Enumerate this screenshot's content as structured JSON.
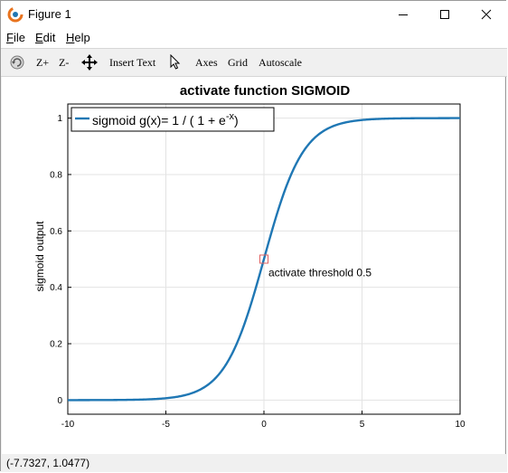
{
  "window": {
    "title": "Figure 1",
    "controls": [
      "minimize",
      "maximize",
      "close"
    ]
  },
  "menu": {
    "items": [
      {
        "label": "File",
        "mnemonic": "F"
      },
      {
        "label": "Edit",
        "mnemonic": "E"
      },
      {
        "label": "Help",
        "mnemonic": "H"
      }
    ]
  },
  "toolbar": {
    "rotate_icon": "rotate-icon",
    "zoom_in": "Z+",
    "zoom_out": "Z-",
    "pan_icon": "pan-arrows-icon",
    "insert_text": "Insert Text",
    "select_icon": "pointer-icon",
    "axes": "Axes",
    "grid": "Grid",
    "autoscale": "Autoscale"
  },
  "status": {
    "coordinates": "(-7.7327, 1.0477)"
  },
  "chart_data": {
    "type": "line",
    "title": "activate function SIGMOID",
    "xlabel": "",
    "ylabel": "sigmoid output",
    "xlim": [
      -10,
      10
    ],
    "ylim": [
      -0.05,
      1.05
    ],
    "x_ticks": [
      -10,
      -5,
      0,
      5,
      10
    ],
    "x_tick_labels": [
      "-10",
      "-5",
      "0",
      "5",
      "10"
    ],
    "y_ticks": [
      0,
      0.2,
      0.4,
      0.6,
      0.8,
      1
    ],
    "y_tick_labels": [
      "0",
      "0.2",
      "0.4",
      "0.6",
      "0.8",
      "1"
    ],
    "grid": true,
    "legend_placement": "top-left",
    "legend": {
      "text_before": "sigmoid g(x)= 1 / ( 1 + e",
      "superscript": "-x",
      "text_after": ")"
    },
    "series": [
      {
        "function": "1 / (1 + exp(-x))",
        "color": "#1f77b4",
        "x": [
          -10,
          -9,
          -8,
          -7,
          -6,
          -5,
          -4,
          -3,
          -2.5,
          -2,
          -1.5,
          -1,
          -0.5,
          0,
          0.5,
          1,
          1.5,
          2,
          2.5,
          3,
          4,
          5,
          6,
          7,
          8,
          9,
          10
        ],
        "y": [
          4.54e-05,
          0.000123,
          0.000335,
          0.000911,
          0.00247,
          0.00669,
          0.018,
          0.0474,
          0.0759,
          0.1192,
          0.1824,
          0.2689,
          0.3775,
          0.5,
          0.6225,
          0.7311,
          0.8176,
          0.8808,
          0.9241,
          0.9526,
          0.982,
          0.9933,
          0.9975,
          0.9991,
          0.99966,
          0.99988,
          0.99995
        ]
      }
    ],
    "annotation": {
      "text": "activate threshold 0.5",
      "x": 0,
      "y": 0.5,
      "marker": "square",
      "marker_color": "#e06060"
    }
  }
}
